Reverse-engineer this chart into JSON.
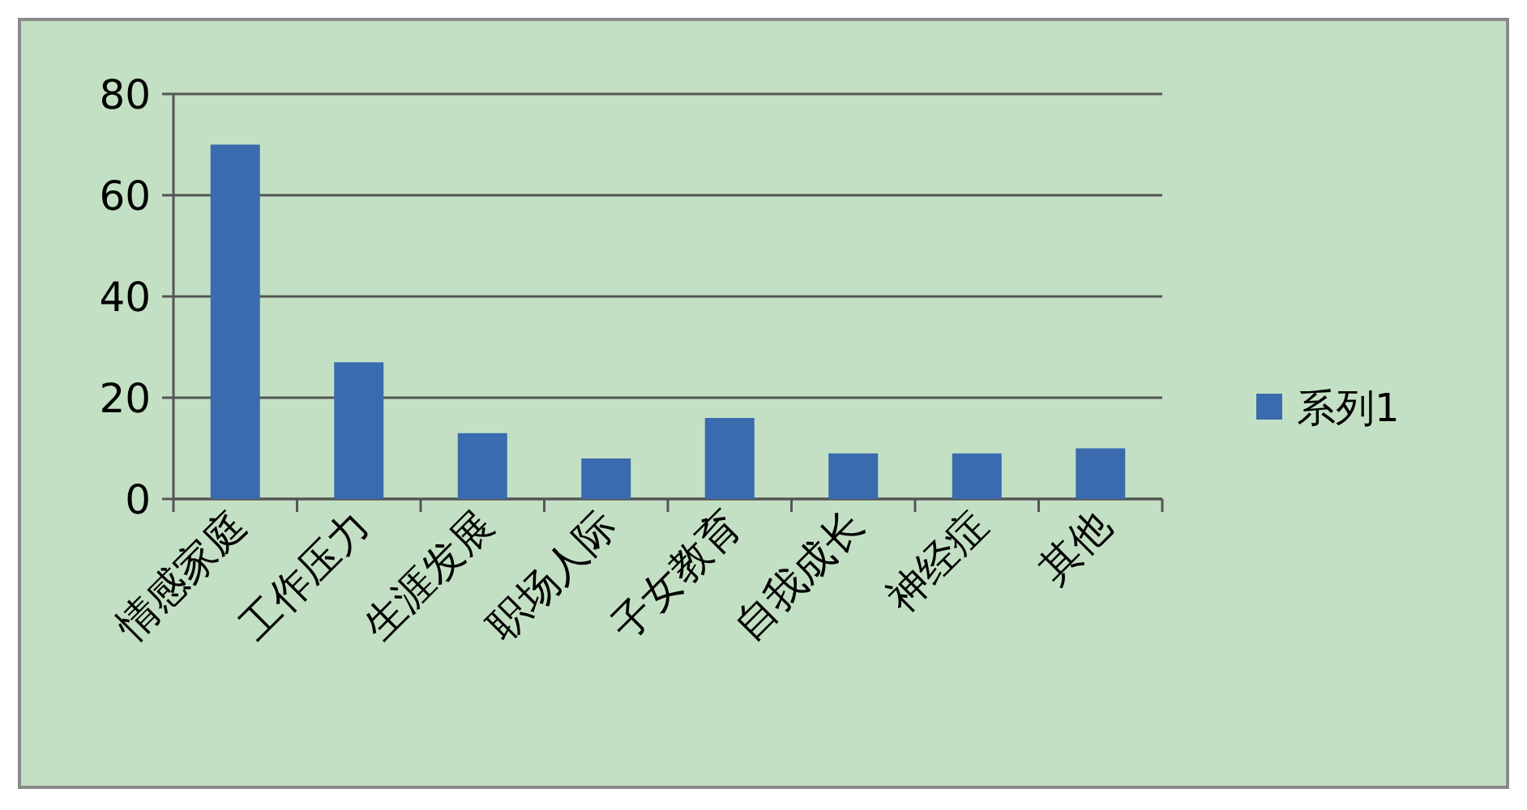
{
  "chart_data": {
    "type": "bar",
    "categories": [
      "情感家庭",
      "工作压力",
      "生涯发展",
      "职场人际",
      "子女教育",
      "自我成长",
      "神经症",
      "其他"
    ],
    "series": [
      {
        "name": "系列1",
        "color": "#3a6baf",
        "values": [
          70,
          27,
          13,
          8,
          16,
          9,
          9,
          10
        ]
      }
    ],
    "ylim": [
      0,
      80
    ],
    "yticks": [
      0,
      20,
      40,
      60,
      80
    ],
    "grid": "y",
    "legend": "right"
  }
}
